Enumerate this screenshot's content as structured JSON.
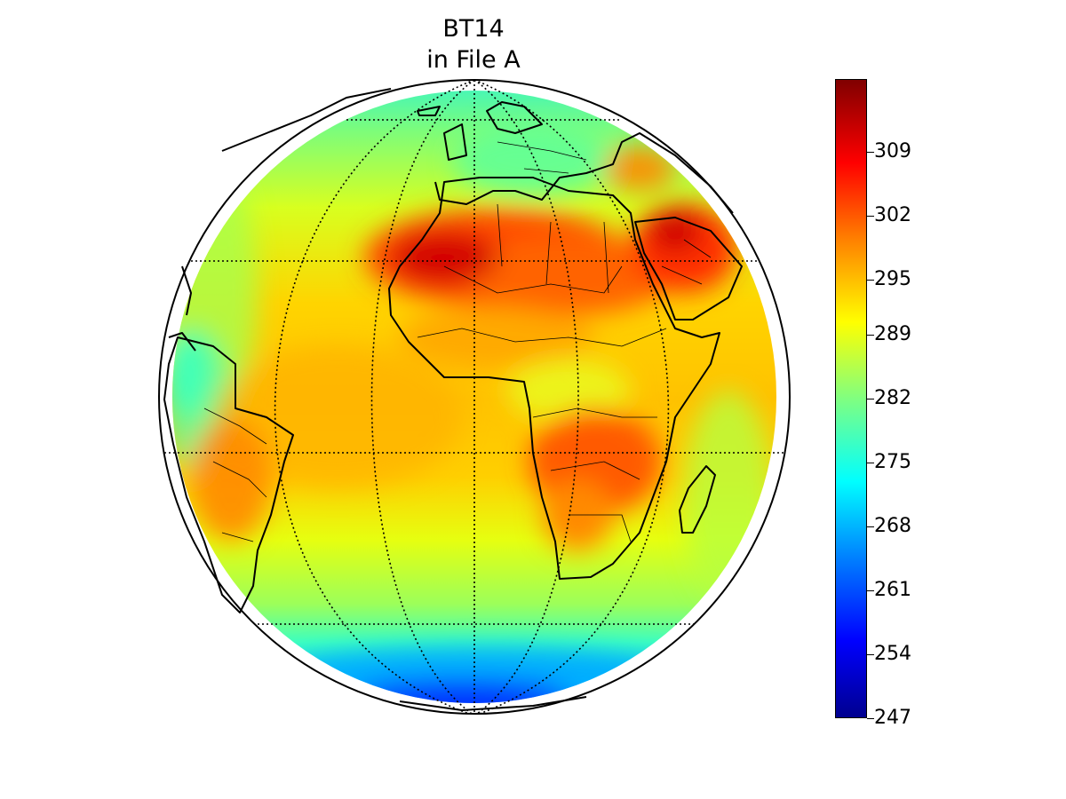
{
  "figure": {
    "title_line_1": "BT14",
    "title_line_2": "in File A"
  },
  "colorbar": {
    "colormap": "jet",
    "min": 247,
    "max": 317,
    "ticks": [
      {
        "value": 309,
        "label": "309"
      },
      {
        "value": 302,
        "label": "302"
      },
      {
        "value": 295,
        "label": "295"
      },
      {
        "value": 289,
        "label": "289"
      },
      {
        "value": 282,
        "label": "282"
      },
      {
        "value": 275,
        "label": "275"
      },
      {
        "value": 268,
        "label": "268"
      },
      {
        "value": 261,
        "label": "261"
      },
      {
        "value": 254,
        "label": "254"
      },
      {
        "value": 247,
        "label": "247"
      }
    ]
  },
  "map": {
    "projection": "orthographic",
    "field": "brightness temperature",
    "graticule": "dotted",
    "regions": [
      {
        "name": "Sahara",
        "level": "hot"
      },
      {
        "name": "Arabian Peninsula",
        "level": "hot"
      },
      {
        "name": "Southern Africa",
        "level": "warm"
      },
      {
        "name": "Tropical Atlantic",
        "level": "warm"
      },
      {
        "name": "Southern Ocean",
        "level": "cold"
      },
      {
        "name": "Antarctic rim",
        "level": "coldest"
      },
      {
        "name": "Europe",
        "level": "cool"
      },
      {
        "name": "Amazon",
        "level": "cool"
      }
    ]
  }
}
